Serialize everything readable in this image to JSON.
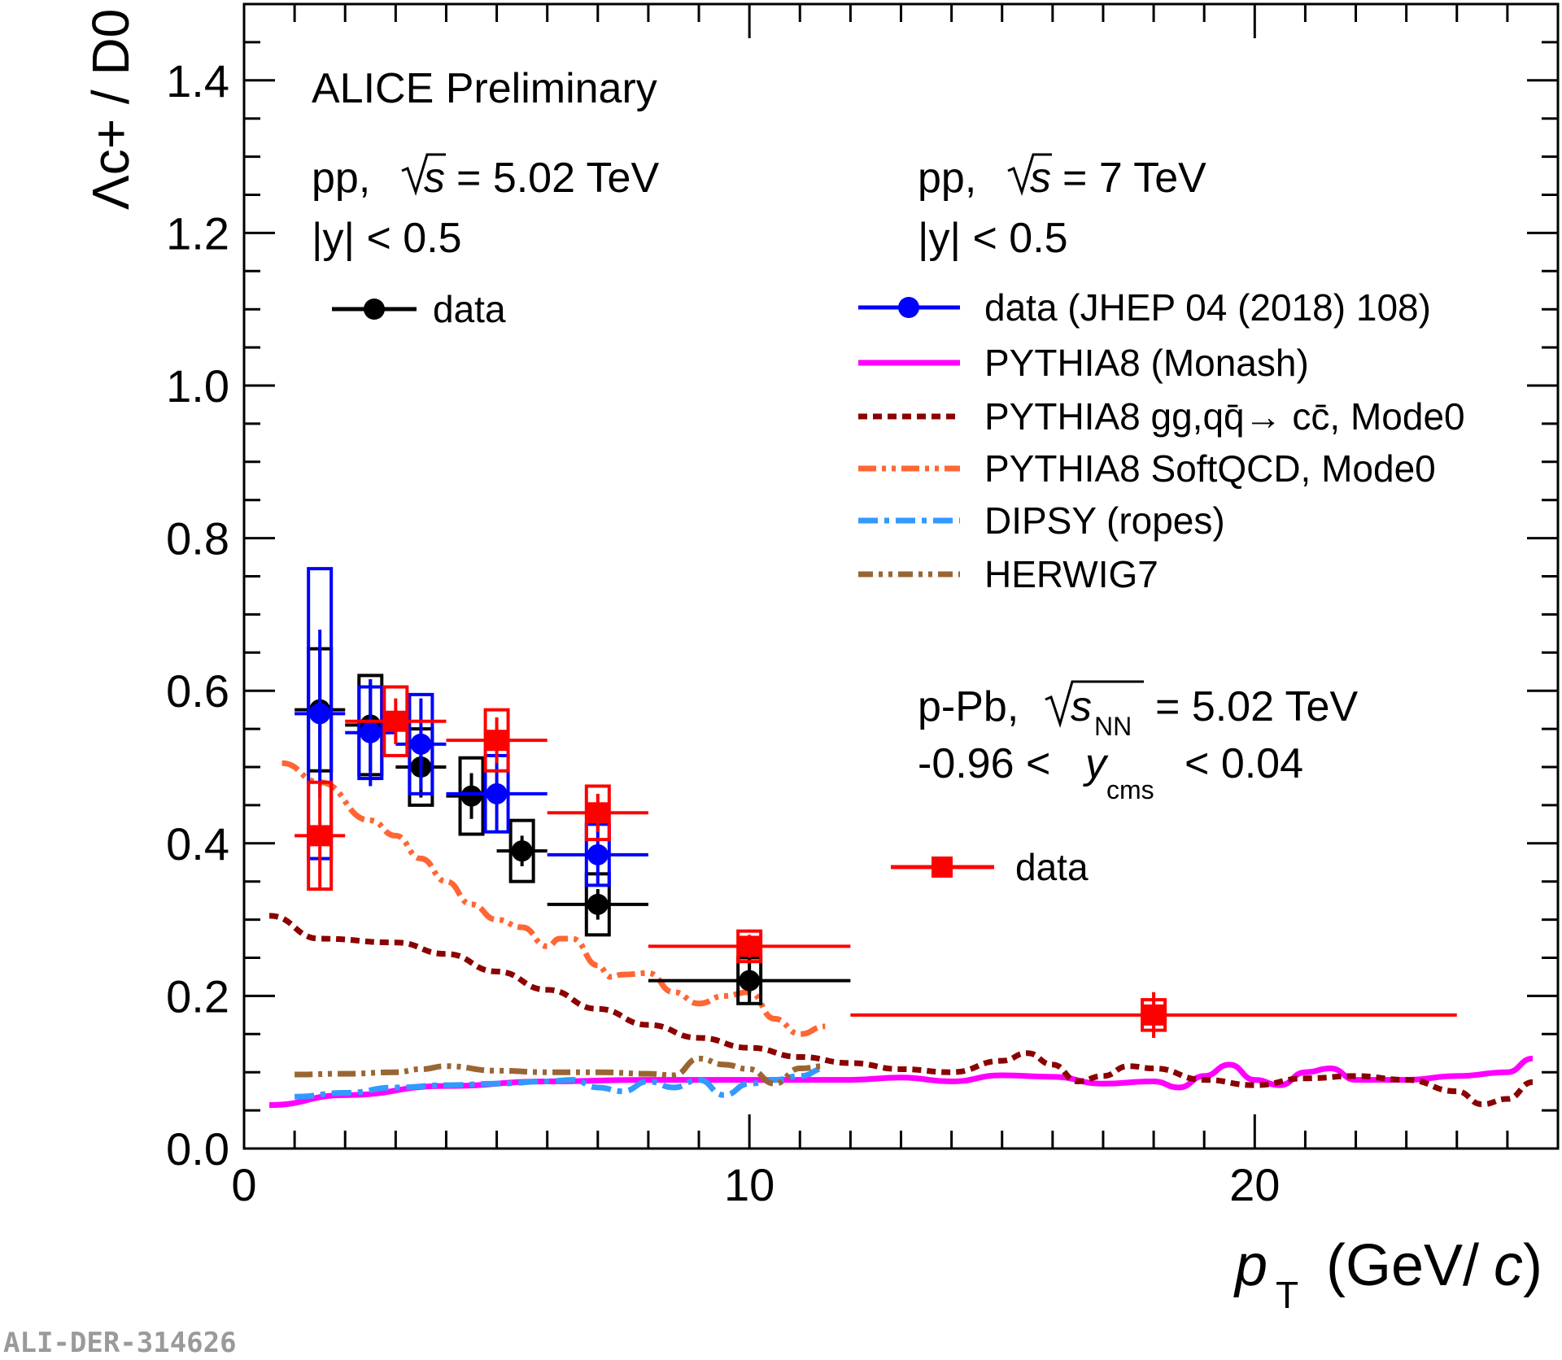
{
  "chart_data": {
    "type": "scatter",
    "title": "ALICE Preliminary",
    "xlabel_italic": "p",
    "xlabel_sub": "T",
    "xlabel_unit_open": "(GeV/",
    "xlabel_unit_c": "c",
    "xlabel_unit_close": ")",
    "ylabel": "Λc+ / D0",
    "xlim": [
      0,
      26
    ],
    "ylim": [
      0,
      1.5
    ],
    "xticks": [
      0,
      10,
      20
    ],
    "xtick_labels": [
      "0",
      "10",
      "20"
    ],
    "yticks": [
      0,
      0.2,
      0.4,
      0.6,
      0.8,
      1.0,
      1.2,
      1.4
    ],
    "ytick_labels": [
      "0.0",
      "0.2",
      "0.4",
      "0.6",
      "0.8",
      "1.0",
      "1.2",
      "1.4"
    ],
    "annotations": {
      "pp502_line1_a": "pp,",
      "pp502_line1_s": "s",
      "pp502_line1_b": "= 5.02 TeV",
      "pp502_line2": "|y| < 0.5",
      "pp7_line1_a": "pp,",
      "pp7_line1_s": "s",
      "pp7_line1_b": "= 7 TeV",
      "pp7_line2": "|y| < 0.5",
      "ppb_line1_a": "p-Pb,",
      "ppb_line1_s": "s",
      "ppb_line1_sub": "NN",
      "ppb_line1_b": "= 5.02 TeV",
      "ppb_line2_a": "-0.96 <",
      "ppb_line2_y": "y",
      "ppb_line2_sub": "cms",
      "ppb_line2_b": "< 0.04"
    },
    "legend": [
      {
        "label": "data",
        "color": "#000000",
        "style": "marker-circle"
      },
      {
        "label": "data (JHEP 04 (2018) 108)",
        "color": "#0000ff",
        "style": "marker-circle"
      },
      {
        "label": "PYTHIA8 (Monash)",
        "color": "#ff00ff",
        "style": "solid"
      },
      {
        "label": "PYTHIA8 gg,qq̄→ cc̄, Mode0",
        "color": "#8b0000",
        "style": "dotted"
      },
      {
        "label": "PYTHIA8 SoftQCD, Mode0",
        "color": "#ff6633",
        "style": "dash-dot-dot"
      },
      {
        "label": "DIPSY (ropes)",
        "color": "#3399ff",
        "style": "dash-dot"
      },
      {
        "label": "HERWIG7",
        "color": "#996633",
        "style": "dash-dot-dot"
      },
      {
        "label": "data",
        "color": "#ff0000",
        "style": "marker-square"
      }
    ],
    "series": [
      {
        "name": "pp 5.02 TeV data",
        "color": "#000000",
        "marker": "circle",
        "points": [
          {
            "x": 1.5,
            "y": 0.575,
            "xlo": 1.0,
            "xhi": 2.0,
            "stat": 0.08,
            "syst": 0.08
          },
          {
            "x": 2.5,
            "y": 0.555,
            "xlo": 2.0,
            "xhi": 3.0,
            "stat": 0.06,
            "syst": 0.065
          },
          {
            "x": 3.5,
            "y": 0.5,
            "xlo": 3.0,
            "xhi": 4.0,
            "stat": 0.04,
            "syst": 0.05
          },
          {
            "x": 4.5,
            "y": 0.462,
            "xlo": 4.0,
            "xhi": 5.0,
            "stat": 0.03,
            "syst": 0.05
          },
          {
            "x": 5.5,
            "y": 0.39,
            "xlo": 5.0,
            "xhi": 6.0,
            "stat": 0.02,
            "syst": 0.04
          },
          {
            "x": 7.0,
            "y": 0.32,
            "xlo": 6.0,
            "xhi": 8.0,
            "stat": 0.02,
            "syst": 0.04
          },
          {
            "x": 10.0,
            "y": 0.22,
            "xlo": 8.0,
            "xhi": 12.0,
            "stat": 0.03,
            "syst": 0.03
          }
        ]
      },
      {
        "name": "pp 7 TeV data (JHEP 04 (2018) 108)",
        "color": "#0000ff",
        "marker": "circle",
        "points": [
          {
            "x": 1.5,
            "y": 0.57,
            "xlo": 1.0,
            "xhi": 2.0,
            "stat": 0.11,
            "syst": 0.19
          },
          {
            "x": 2.5,
            "y": 0.545,
            "xlo": 2.0,
            "xhi": 3.0,
            "stat": 0.07,
            "syst": 0.06
          },
          {
            "x": 3.5,
            "y": 0.53,
            "xlo": 3.0,
            "xhi": 4.0,
            "stat": 0.06,
            "syst": 0.065
          },
          {
            "x": 5.0,
            "y": 0.465,
            "xlo": 4.0,
            "xhi": 6.0,
            "stat": 0.05,
            "syst": 0.05
          },
          {
            "x": 7.0,
            "y": 0.385,
            "xlo": 6.0,
            "xhi": 8.0,
            "stat": 0.04,
            "syst": 0.04
          }
        ]
      },
      {
        "name": "p-Pb 5.02 TeV data",
        "color": "#ff0000",
        "marker": "square",
        "points": [
          {
            "x": 1.5,
            "y": 0.41,
            "xlo": 1.0,
            "xhi": 2.0,
            "stat": 0.07,
            "syst": 0.07
          },
          {
            "x": 3.0,
            "y": 0.56,
            "xlo": 2.0,
            "xhi": 4.0,
            "stat": 0.03,
            "syst": 0.045
          },
          {
            "x": 5.0,
            "y": 0.535,
            "xlo": 4.0,
            "xhi": 6.0,
            "stat": 0.03,
            "syst": 0.04
          },
          {
            "x": 7.0,
            "y": 0.44,
            "xlo": 6.0,
            "xhi": 8.0,
            "stat": 0.025,
            "syst": 0.035
          },
          {
            "x": 10.0,
            "y": 0.265,
            "xlo": 8.0,
            "xhi": 12.0,
            "stat": 0.015,
            "syst": 0.02
          },
          {
            "x": 18.0,
            "y": 0.175,
            "xlo": 12.0,
            "xhi": 24.0,
            "stat": 0.03,
            "syst": 0.02
          }
        ]
      }
    ],
    "curves": [
      {
        "name": "PYTHIA8 (Monash)",
        "color": "#ff00ff",
        "style": "solid",
        "x": [
          0.5,
          2,
          4,
          6,
          8,
          10,
          12,
          13,
          14,
          15,
          16,
          17,
          18,
          18.5,
          19,
          19.5,
          20,
          20.5,
          21,
          21.5,
          22,
          23,
          24,
          25,
          25.5
        ],
        "y": [
          0.057,
          0.07,
          0.082,
          0.088,
          0.09,
          0.09,
          0.09,
          0.093,
          0.088,
          0.096,
          0.094,
          0.085,
          0.088,
          0.08,
          0.095,
          0.11,
          0.09,
          0.083,
          0.1,
          0.105,
          0.09,
          0.09,
          0.095,
          0.1,
          0.118
        ]
      },
      {
        "name": "PYTHIA8 gg,qq̄→ cc̄, Mode0",
        "color": "#8b0000",
        "style": "dotted",
        "x": [
          0.5,
          1.5,
          3,
          4,
          5,
          6,
          7,
          8,
          9,
          10,
          11,
          12,
          13,
          14,
          15,
          15.5,
          16,
          16.5,
          17,
          17.5,
          18,
          19,
          20,
          21,
          22,
          23,
          24,
          24.5,
          25,
          25.5
        ],
        "y": [
          0.305,
          0.275,
          0.27,
          0.255,
          0.232,
          0.208,
          0.183,
          0.162,
          0.145,
          0.132,
          0.12,
          0.112,
          0.104,
          0.1,
          0.115,
          0.125,
          0.11,
          0.088,
          0.095,
          0.108,
          0.105,
          0.09,
          0.083,
          0.092,
          0.095,
          0.09,
          0.075,
          0.058,
          0.065,
          0.087
        ]
      },
      {
        "name": "PYTHIA8 SoftQCD, Mode0",
        "color": "#ff6633",
        "style": "dash-dot-dot",
        "x": [
          0.75,
          1.5,
          2.5,
          3.0,
          3.5,
          4.0,
          4.5,
          5.0,
          5.5,
          6.0,
          6.25,
          6.5,
          7.0,
          7.25,
          7.5,
          8.0,
          8.5,
          9.0,
          9.5,
          10.0,
          10.5,
          11.0,
          11.5
        ],
        "y": [
          0.505,
          0.48,
          0.43,
          0.41,
          0.38,
          0.35,
          0.32,
          0.3,
          0.29,
          0.265,
          0.275,
          0.275,
          0.24,
          0.225,
          0.228,
          0.23,
          0.205,
          0.19,
          0.2,
          0.205,
          0.17,
          0.15,
          0.16
        ]
      },
      {
        "name": "DIPSY (ropes)",
        "color": "#3399ff",
        "style": "dash-dot",
        "x": [
          1,
          2,
          3,
          4,
          5,
          6,
          6.5,
          7,
          7.5,
          8,
          8.5,
          9,
          9.5,
          10,
          10.5,
          11,
          11.5
        ],
        "y": [
          0.068,
          0.073,
          0.08,
          0.083,
          0.085,
          0.088,
          0.09,
          0.08,
          0.075,
          0.088,
          0.08,
          0.09,
          0.07,
          0.085,
          0.09,
          0.095,
          0.105
        ]
      },
      {
        "name": "HERWIG7",
        "color": "#996633",
        "style": "dash-dot-dot",
        "x": [
          1,
          2,
          3,
          3.5,
          4,
          5,
          6,
          7,
          8,
          8.5,
          9,
          9.5,
          10,
          10.5,
          11,
          11.5
        ],
        "y": [
          0.097,
          0.098,
          0.1,
          0.104,
          0.108,
          0.102,
          0.1,
          0.1,
          0.098,
          0.096,
          0.118,
          0.11,
          0.104,
          0.085,
          0.105,
          0.108
        ]
      }
    ],
    "footer_code": "ALI-DER-314626"
  }
}
